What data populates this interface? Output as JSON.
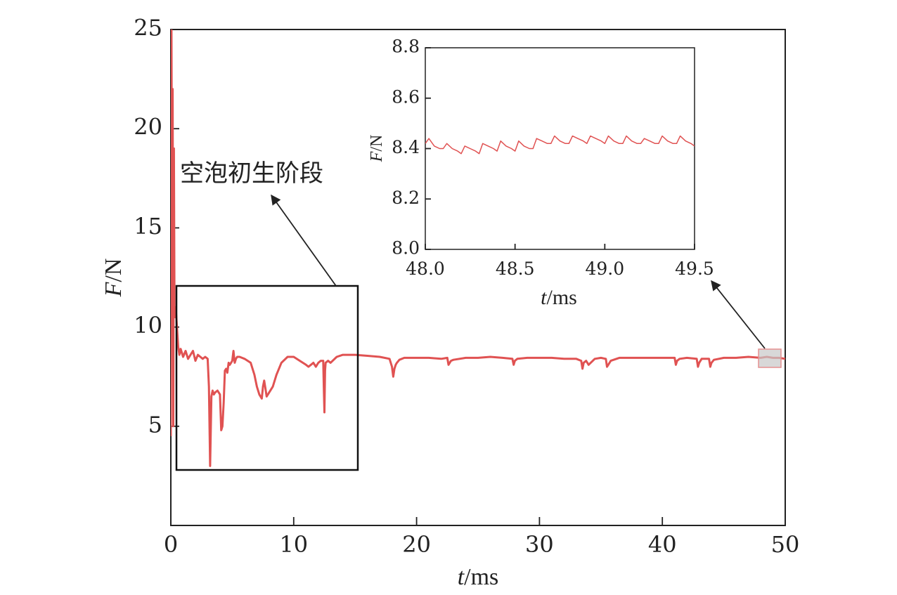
{
  "chart_data": [
    {
      "type": "line",
      "panel": "main",
      "xlabel_var": "t",
      "xlabel_unit": "/ms",
      "ylabel_var": "F",
      "ylabel_unit": "/N",
      "xlim": [
        0,
        50
      ],
      "ylim": [
        0,
        25
      ],
      "xticks": [
        0,
        10,
        20,
        30,
        40,
        50
      ],
      "yticks": [
        5,
        10,
        15,
        20,
        25
      ],
      "line_color": "#e05252",
      "annotation": "空泡初生阶段",
      "series": [
        {
          "x": [
            0,
            0.05,
            0.1,
            0.15,
            0.2,
            0.25,
            0.3,
            0.35,
            0.4,
            0.5,
            0.6,
            0.7,
            0.8,
            1.0,
            1.2,
            1.4,
            1.6,
            1.8,
            2.0,
            2.2,
            2.4,
            2.6,
            2.8,
            3.0,
            3.1,
            3.2,
            3.3,
            3.4,
            3.5,
            3.6,
            3.8,
            4.0,
            4.1,
            4.2,
            4.3,
            4.4,
            4.5,
            4.6,
            4.7,
            4.8,
            5.0,
            5.1,
            5.2,
            5.3,
            5.4,
            5.6,
            6.0,
            6.5,
            6.8,
            7.0,
            7.2,
            7.4,
            7.5,
            7.6,
            7.7,
            7.8,
            7.9,
            8.0,
            8.3,
            8.6,
            9.0,
            9.5,
            10.0,
            10.5,
            11.0,
            11.2,
            11.4,
            11.6,
            11.8,
            12.0,
            12.2,
            12.4,
            12.45,
            12.5,
            12.55,
            12.6,
            12.8,
            13.0,
            13.5,
            14.0,
            15.0,
            16.0,
            17.0,
            17.8,
            18.0,
            18.1,
            18.2,
            18.3,
            18.4,
            18.6,
            19.0,
            20.0,
            21.0,
            22.0,
            22.5,
            22.6,
            22.8,
            23.0,
            24.0,
            25.0,
            26.0,
            27.0,
            27.8,
            27.9,
            28.0,
            28.2,
            29.0,
            30.0,
            31.0,
            32.0,
            33.0,
            33.4,
            33.5,
            33.6,
            33.8,
            34.0,
            34.5,
            35.0,
            35.4,
            35.5,
            35.6,
            35.8,
            36.5,
            37.0,
            38.0,
            39.0,
            40.0,
            41.0,
            41.1,
            41.2,
            41.4,
            42.0,
            42.8,
            42.9,
            43.0,
            43.2,
            43.8,
            43.9,
            44.0,
            44.2,
            45.0,
            46.0,
            47.0,
            48.0,
            48.5,
            49.0,
            49.5,
            50.0
          ],
          "y": [
            4.5,
            25.0,
            15.0,
            22.0,
            5.0,
            19.0,
            11.0,
            10.5,
            11.0,
            10.0,
            9.0,
            8.6,
            8.9,
            8.5,
            8.8,
            8.4,
            8.6,
            8.8,
            8.3,
            8.6,
            8.5,
            8.4,
            8.5,
            8.4,
            7.0,
            3.0,
            6.5,
            6.8,
            6.6,
            6.7,
            6.8,
            6.6,
            4.8,
            5.0,
            6.2,
            7.8,
            7.9,
            7.7,
            8.2,
            8.1,
            8.3,
            8.8,
            8.2,
            8.4,
            8.5,
            8.5,
            8.4,
            8.2,
            7.6,
            7.0,
            6.6,
            6.4,
            7.0,
            7.3,
            6.9,
            6.5,
            6.6,
            6.7,
            7.0,
            7.6,
            8.2,
            8.5,
            8.5,
            8.3,
            8.1,
            8.0,
            8.1,
            8.2,
            8.0,
            8.2,
            8.3,
            8.3,
            7.0,
            5.7,
            7.8,
            8.2,
            8.3,
            8.2,
            8.5,
            8.6,
            8.6,
            8.55,
            8.5,
            8.4,
            8.0,
            7.5,
            7.9,
            8.1,
            8.2,
            8.35,
            8.45,
            8.45,
            8.45,
            8.4,
            8.45,
            8.1,
            8.3,
            8.35,
            8.45,
            8.45,
            8.5,
            8.45,
            8.4,
            8.1,
            8.3,
            8.4,
            8.45,
            8.45,
            8.45,
            8.4,
            8.4,
            8.3,
            7.9,
            8.2,
            8.3,
            8.1,
            8.4,
            8.45,
            8.4,
            8.0,
            8.1,
            8.3,
            8.45,
            8.45,
            8.45,
            8.45,
            8.45,
            8.45,
            8.1,
            8.3,
            8.4,
            8.45,
            8.4,
            8.0,
            8.2,
            8.4,
            8.4,
            8.0,
            8.2,
            8.35,
            8.45,
            8.45,
            8.5,
            8.45,
            8.5,
            8.45,
            8.45,
            8.4
          ]
        }
      ]
    },
    {
      "type": "line",
      "panel": "inset",
      "xlabel_var": "t",
      "xlabel_unit": "/ms",
      "ylabel_var": "F",
      "ylabel_unit": "/N",
      "xlim": [
        48.0,
        49.5
      ],
      "ylim": [
        8.0,
        8.8
      ],
      "xticks": [
        "48.0",
        "48.5",
        "49.0",
        "49.5"
      ],
      "yticks": [
        "8.0",
        "8.2",
        "8.4",
        "8.6",
        "8.8"
      ],
      "line_color": "#e05252",
      "series": [
        {
          "x": [
            48.0,
            48.02,
            48.05,
            48.08,
            48.1,
            48.12,
            48.15,
            48.18,
            48.2,
            48.22,
            48.25,
            48.28,
            48.3,
            48.32,
            48.35,
            48.38,
            48.4,
            48.42,
            48.45,
            48.48,
            48.5,
            48.52,
            48.55,
            48.58,
            48.6,
            48.62,
            48.65,
            48.68,
            48.7,
            48.72,
            48.75,
            48.78,
            48.8,
            48.82,
            48.85,
            48.88,
            48.9,
            48.92,
            48.95,
            48.98,
            49.0,
            49.02,
            49.05,
            49.08,
            49.1,
            49.12,
            49.15,
            49.18,
            49.2,
            49.22,
            49.25,
            49.28,
            49.3,
            49.32,
            49.35,
            49.38,
            49.4,
            49.42,
            49.45,
            49.48,
            49.5
          ],
          "y": [
            8.42,
            8.44,
            8.41,
            8.4,
            8.4,
            8.42,
            8.4,
            8.39,
            8.38,
            8.41,
            8.4,
            8.39,
            8.38,
            8.42,
            8.41,
            8.4,
            8.39,
            8.43,
            8.41,
            8.4,
            8.39,
            8.43,
            8.41,
            8.4,
            8.4,
            8.44,
            8.43,
            8.42,
            8.42,
            8.45,
            8.43,
            8.42,
            8.42,
            8.45,
            8.44,
            8.43,
            8.42,
            8.45,
            8.44,
            8.43,
            8.42,
            8.45,
            8.43,
            8.42,
            8.42,
            8.45,
            8.43,
            8.42,
            8.42,
            8.44,
            8.43,
            8.42,
            8.42,
            8.45,
            8.43,
            8.42,
            8.42,
            8.45,
            8.43,
            8.42,
            8.41
          ]
        }
      ]
    }
  ]
}
